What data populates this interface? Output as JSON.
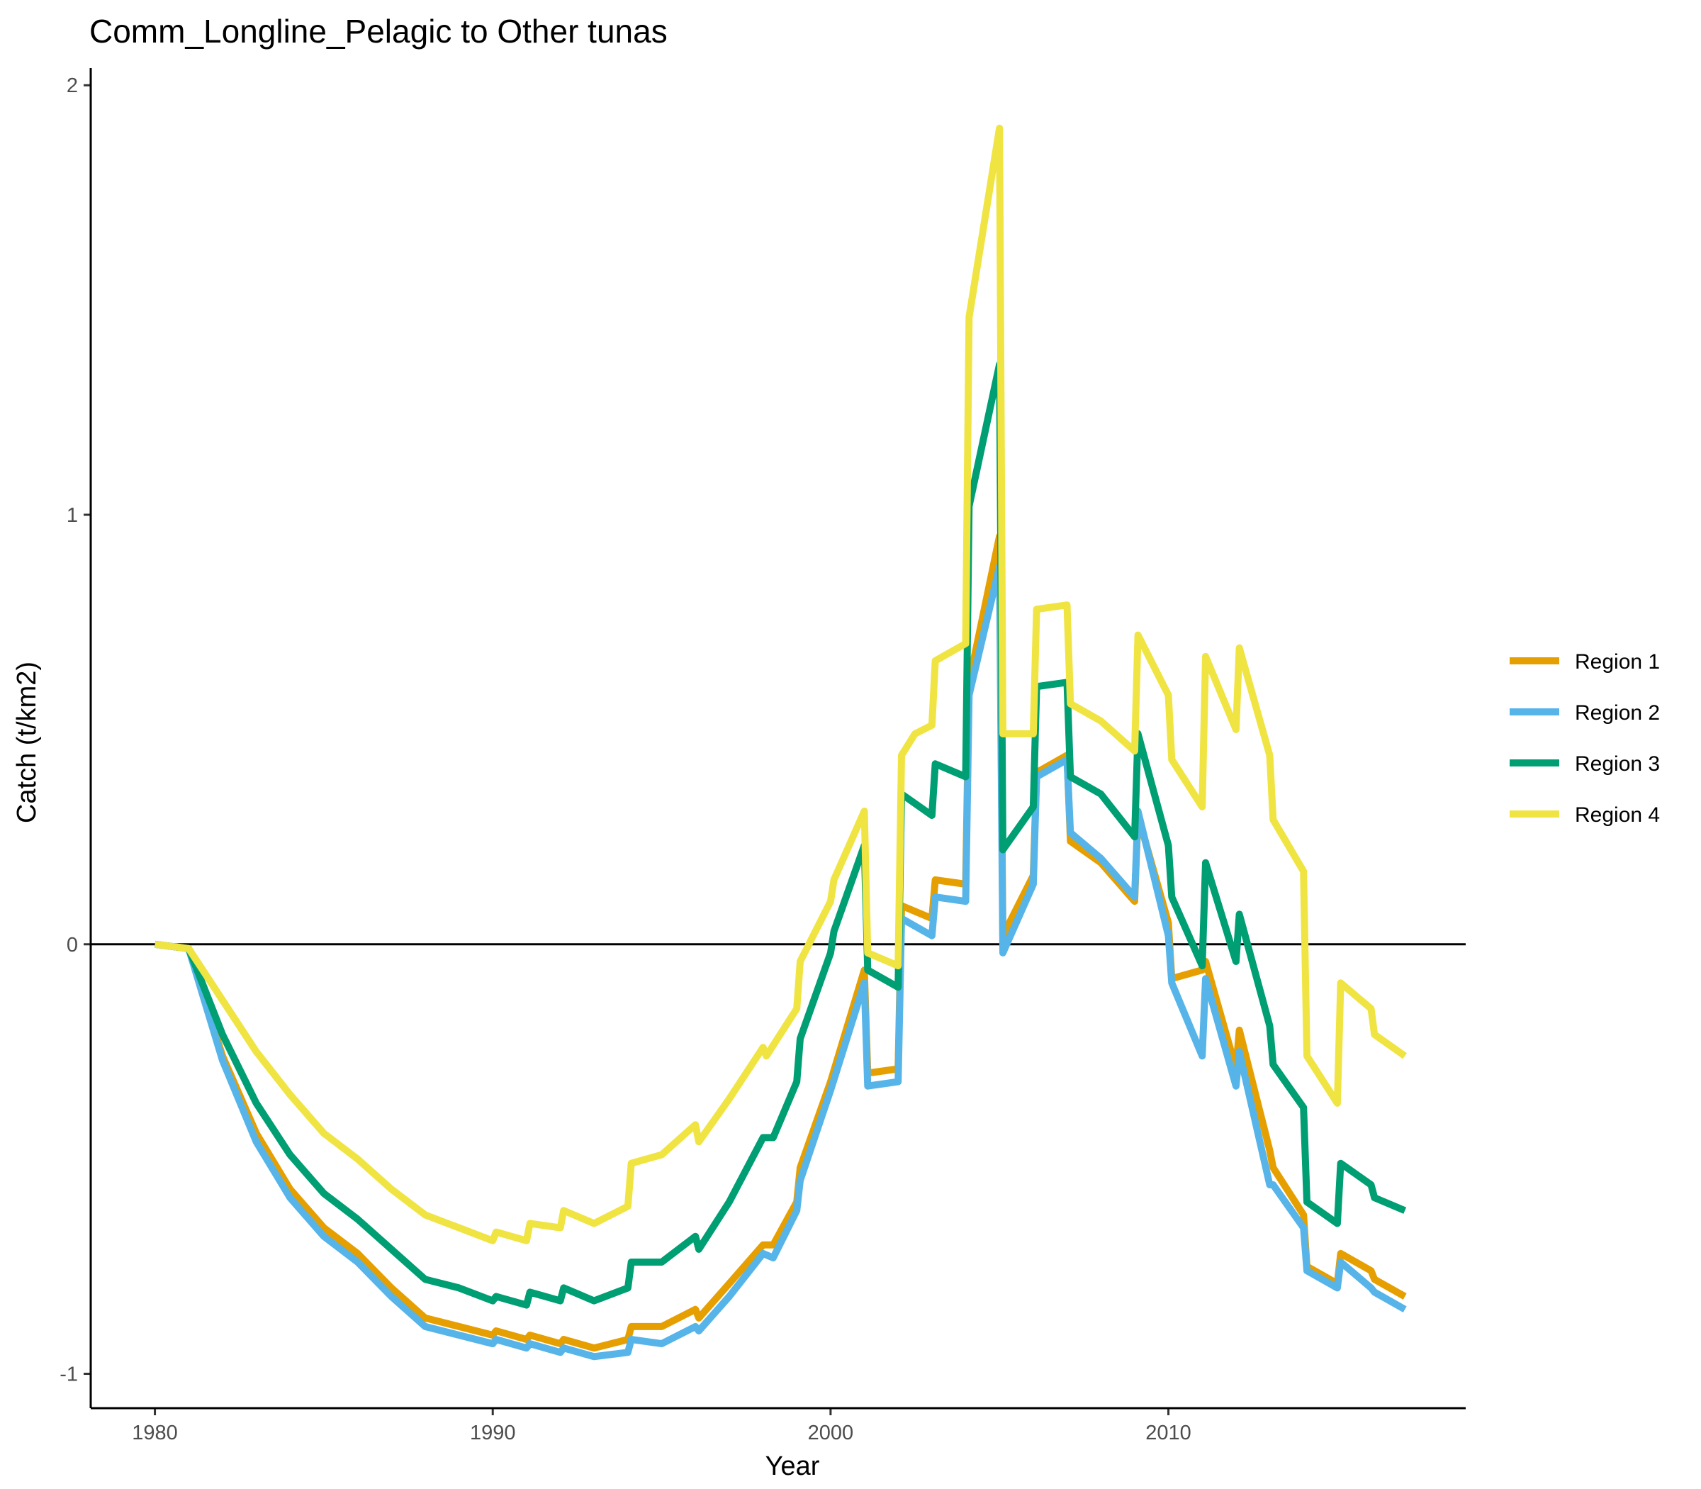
{
  "chart_data": {
    "type": "line",
    "title": "Comm_Longline_Pelagic to Other tunas",
    "xlabel": "Year",
    "ylabel": "Catch (t/km2)",
    "xlim": [
      1978.1,
      2018.8
    ],
    "ylim": [
      -1.08,
      2.04
    ],
    "x_ticks": [
      1980,
      1990,
      2000,
      2010
    ],
    "y_ticks": [
      -1,
      0,
      1,
      2
    ],
    "x_tick_labels": [
      "1980",
      "1990",
      "2000",
      "2010"
    ],
    "y_tick_labels": [
      "-1",
      "0",
      "1",
      "2"
    ],
    "reference_line": 0,
    "grid": false,
    "legend_position": "right",
    "series": [
      {
        "name": "Region 1",
        "color": "#E69F00",
        "points": [
          [
            1980,
            0
          ],
          [
            1981,
            -0.01
          ],
          [
            1982,
            -0.26
          ],
          [
            1983,
            -0.44
          ],
          [
            1984,
            -0.57
          ],
          [
            1985,
            -0.66
          ],
          [
            1986,
            -0.72
          ],
          [
            1987,
            -0.8
          ],
          [
            1988,
            -0.87
          ],
          [
            1989,
            -0.89
          ],
          [
            1990,
            -0.91
          ],
          [
            1990.1,
            -0.9
          ],
          [
            1991,
            -0.92
          ],
          [
            1991.1,
            -0.91
          ],
          [
            1992,
            -0.93
          ],
          [
            1992.1,
            -0.92
          ],
          [
            1993,
            -0.94
          ],
          [
            1994,
            -0.92
          ],
          [
            1994.1,
            -0.89
          ],
          [
            1995,
            -0.89
          ],
          [
            1996,
            -0.85
          ],
          [
            1996.1,
            -0.87
          ],
          [
            1997,
            -0.79
          ],
          [
            1998,
            -0.7
          ],
          [
            1998.3,
            -0.7
          ],
          [
            1999,
            -0.6
          ],
          [
            1999.1,
            -0.52
          ],
          [
            2000,
            -0.32
          ],
          [
            2001,
            -0.06
          ],
          [
            2001.1,
            -0.3
          ],
          [
            2002,
            -0.29
          ],
          [
            2002.1,
            0.09
          ],
          [
            2003,
            0.06
          ],
          [
            2003.1,
            0.15
          ],
          [
            2004,
            0.14
          ],
          [
            2004.1,
            0.61
          ],
          [
            2005,
            0.95
          ],
          [
            2005.1,
            0.02
          ],
          [
            2006,
            0.16
          ],
          [
            2006.1,
            0.4
          ],
          [
            2007,
            0.44
          ],
          [
            2007.1,
            0.24
          ],
          [
            2008,
            0.19
          ],
          [
            2009,
            0.1
          ],
          [
            2009.1,
            0.3
          ],
          [
            2010,
            0.05
          ],
          [
            2010.1,
            -0.08
          ],
          [
            2011,
            -0.06
          ],
          [
            2011.1,
            -0.04
          ],
          [
            2012,
            -0.29
          ],
          [
            2012.1,
            -0.2
          ],
          [
            2013,
            -0.48
          ],
          [
            2013.1,
            -0.52
          ],
          [
            2014,
            -0.63
          ],
          [
            2014.1,
            -0.75
          ],
          [
            2015,
            -0.79
          ],
          [
            2015.1,
            -0.72
          ],
          [
            2016,
            -0.76
          ],
          [
            2016.1,
            -0.78
          ],
          [
            2017,
            -0.82
          ]
        ]
      },
      {
        "name": "Region 2",
        "color": "#56B4E9",
        "points": [
          [
            1980,
            0
          ],
          [
            1981,
            -0.01
          ],
          [
            1982,
            -0.27
          ],
          [
            1983,
            -0.46
          ],
          [
            1984,
            -0.59
          ],
          [
            1985,
            -0.68
          ],
          [
            1986,
            -0.74
          ],
          [
            1987,
            -0.82
          ],
          [
            1988,
            -0.89
          ],
          [
            1989,
            -0.91
          ],
          [
            1990,
            -0.93
          ],
          [
            1990.1,
            -0.92
          ],
          [
            1991,
            -0.94
          ],
          [
            1991.1,
            -0.93
          ],
          [
            1992,
            -0.95
          ],
          [
            1992.1,
            -0.94
          ],
          [
            1993,
            -0.96
          ],
          [
            1994,
            -0.95
          ],
          [
            1994.1,
            -0.92
          ],
          [
            1995,
            -0.93
          ],
          [
            1996,
            -0.89
          ],
          [
            1996.1,
            -0.9
          ],
          [
            1997,
            -0.82
          ],
          [
            1998,
            -0.72
          ],
          [
            1998.3,
            -0.73
          ],
          [
            1999,
            -0.62
          ],
          [
            1999.1,
            -0.55
          ],
          [
            2000,
            -0.34
          ],
          [
            2001,
            -0.09
          ],
          [
            2001.1,
            -0.33
          ],
          [
            2002,
            -0.32
          ],
          [
            2002.1,
            0.06
          ],
          [
            2003,
            0.02
          ],
          [
            2003.1,
            0.11
          ],
          [
            2004,
            0.1
          ],
          [
            2004.1,
            0.58
          ],
          [
            2005,
            0.88
          ],
          [
            2005.1,
            -0.02
          ],
          [
            2006,
            0.14
          ],
          [
            2006.1,
            0.39
          ],
          [
            2007,
            0.43
          ],
          [
            2007.1,
            0.26
          ],
          [
            2008,
            0.2
          ],
          [
            2009,
            0.11
          ],
          [
            2009.1,
            0.31
          ],
          [
            2010,
            0.02
          ],
          [
            2010.1,
            -0.09
          ],
          [
            2011,
            -0.26
          ],
          [
            2011.1,
            -0.08
          ],
          [
            2012,
            -0.33
          ],
          [
            2012.1,
            -0.25
          ],
          [
            2013,
            -0.56
          ],
          [
            2013.1,
            -0.56
          ],
          [
            2014,
            -0.66
          ],
          [
            2014.1,
            -0.76
          ],
          [
            2015,
            -0.8
          ],
          [
            2015.1,
            -0.74
          ],
          [
            2016,
            -0.8
          ],
          [
            2016.1,
            -0.81
          ],
          [
            2017,
            -0.85
          ]
        ]
      },
      {
        "name": "Region 3",
        "color": "#009E73",
        "points": [
          [
            1980,
            0
          ],
          [
            1981,
            -0.01
          ],
          [
            1982,
            -0.21
          ],
          [
            1983,
            -0.37
          ],
          [
            1984,
            -0.49
          ],
          [
            1985,
            -0.58
          ],
          [
            1986,
            -0.64
          ],
          [
            1987,
            -0.71
          ],
          [
            1988,
            -0.78
          ],
          [
            1989,
            -0.8
          ],
          [
            1990,
            -0.83
          ],
          [
            1990.1,
            -0.82
          ],
          [
            1991,
            -0.84
          ],
          [
            1991.1,
            -0.81
          ],
          [
            1992,
            -0.83
          ],
          [
            1992.1,
            -0.8
          ],
          [
            1993,
            -0.83
          ],
          [
            1994,
            -0.8
          ],
          [
            1994.1,
            -0.74
          ],
          [
            1995,
            -0.74
          ],
          [
            1996,
            -0.68
          ],
          [
            1996.1,
            -0.71
          ],
          [
            1997,
            -0.6
          ],
          [
            1998,
            -0.45
          ],
          [
            1998.3,
            -0.45
          ],
          [
            1999,
            -0.32
          ],
          [
            1999.1,
            -0.22
          ],
          [
            2000,
            -0.02
          ],
          [
            2000.1,
            0.03
          ],
          [
            2001,
            0.23
          ],
          [
            2001.1,
            -0.06
          ],
          [
            2002,
            -0.1
          ],
          [
            2002.1,
            0.35
          ],
          [
            2003,
            0.3
          ],
          [
            2003.1,
            0.42
          ],
          [
            2004,
            0.39
          ],
          [
            2004.1,
            1.02
          ],
          [
            2005,
            1.35
          ],
          [
            2005.1,
            0.22
          ],
          [
            2006,
            0.32
          ],
          [
            2006.1,
            0.6
          ],
          [
            2007,
            0.61
          ],
          [
            2007.1,
            0.39
          ],
          [
            2008,
            0.35
          ],
          [
            2009,
            0.25
          ],
          [
            2009.1,
            0.49
          ],
          [
            2010,
            0.23
          ],
          [
            2010.1,
            0.11
          ],
          [
            2011,
            -0.05
          ],
          [
            2011.1,
            0.19
          ],
          [
            2012,
            -0.04
          ],
          [
            2012.1,
            0.07
          ],
          [
            2013,
            -0.19
          ],
          [
            2013.1,
            -0.28
          ],
          [
            2014,
            -0.38
          ],
          [
            2014.1,
            -0.6
          ],
          [
            2015,
            -0.65
          ],
          [
            2015.1,
            -0.51
          ],
          [
            2016,
            -0.56
          ],
          [
            2016.1,
            -0.59
          ],
          [
            2017,
            -0.62
          ]
        ]
      },
      {
        "name": "Region 4",
        "color": "#F0E442",
        "points": [
          [
            1980,
            0
          ],
          [
            1981,
            -0.01
          ],
          [
            1982,
            -0.13
          ],
          [
            1983,
            -0.25
          ],
          [
            1984,
            -0.35
          ],
          [
            1985,
            -0.44
          ],
          [
            1986,
            -0.5
          ],
          [
            1987,
            -0.57
          ],
          [
            1988,
            -0.63
          ],
          [
            1989,
            -0.66
          ],
          [
            1990,
            -0.69
          ],
          [
            1990.1,
            -0.67
          ],
          [
            1991,
            -0.69
          ],
          [
            1991.1,
            -0.65
          ],
          [
            1992,
            -0.66
          ],
          [
            1992.1,
            -0.62
          ],
          [
            1993,
            -0.65
          ],
          [
            1994,
            -0.61
          ],
          [
            1994.1,
            -0.51
          ],
          [
            1995,
            -0.49
          ],
          [
            1996,
            -0.42
          ],
          [
            1996.1,
            -0.46
          ],
          [
            1997,
            -0.36
          ],
          [
            1998,
            -0.24
          ],
          [
            1998.1,
            -0.26
          ],
          [
            1999,
            -0.15
          ],
          [
            1999.1,
            -0.04
          ],
          [
            2000,
            0.1
          ],
          [
            2000.1,
            0.15
          ],
          [
            2001,
            0.31
          ],
          [
            2001.1,
            -0.02
          ],
          [
            2002,
            -0.05
          ],
          [
            2002.1,
            0.44
          ],
          [
            2002.5,
            0.49
          ],
          [
            2003,
            0.51
          ],
          [
            2003.1,
            0.66
          ],
          [
            2004,
            0.7
          ],
          [
            2004.1,
            1.46
          ],
          [
            2005,
            1.9
          ],
          [
            2005.1,
            0.49
          ],
          [
            2006,
            0.49
          ],
          [
            2006.1,
            0.78
          ],
          [
            2007,
            0.79
          ],
          [
            2007.1,
            0.56
          ],
          [
            2008,
            0.52
          ],
          [
            2009,
            0.45
          ],
          [
            2009.1,
            0.72
          ],
          [
            2010,
            0.58
          ],
          [
            2010.1,
            0.43
          ],
          [
            2011,
            0.32
          ],
          [
            2011.1,
            0.67
          ],
          [
            2012,
            0.5
          ],
          [
            2012.1,
            0.69
          ],
          [
            2013,
            0.44
          ],
          [
            2013.1,
            0.29
          ],
          [
            2014,
            0.17
          ],
          [
            2014.1,
            -0.26
          ],
          [
            2015,
            -0.37
          ],
          [
            2015.1,
            -0.09
          ],
          [
            2016,
            -0.15
          ],
          [
            2016.1,
            -0.21
          ],
          [
            2017,
            -0.26
          ]
        ]
      }
    ]
  }
}
